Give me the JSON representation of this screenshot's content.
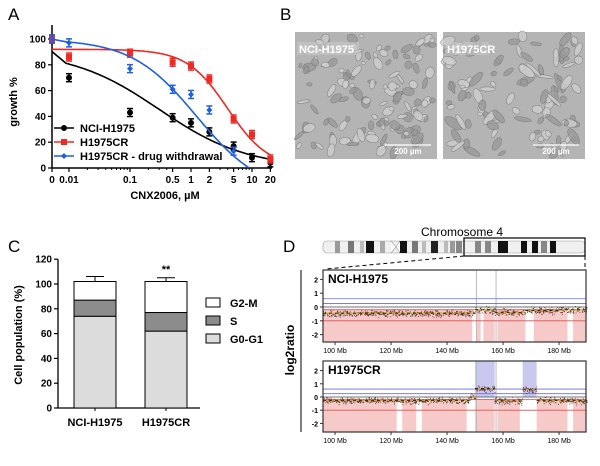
{
  "panels": {
    "a": {
      "label": "A"
    },
    "b": {
      "label": "B",
      "images": [
        {
          "caption": "NCI-H1975",
          "scale_bar": "200 µm"
        },
        {
          "caption": "H1975CR",
          "scale_bar": "200 µm"
        }
      ]
    },
    "c": {
      "label": "C"
    },
    "d": {
      "label": "D",
      "title": "Chromosome 4"
    }
  },
  "chart_data": [
    {
      "panel": "A",
      "type": "line",
      "xlabel": "CNX2006, µM",
      "ylabel": "growth %",
      "x_scale": "log (with 0 at axis break)",
      "x_ticks": [
        "0",
        "0.01",
        "0.1",
        "0.5",
        "1",
        "2",
        "5",
        "10",
        "20"
      ],
      "y_ticks": [
        "0",
        "20",
        "40",
        "60",
        "80",
        "100"
      ],
      "ylim": [
        0,
        110
      ],
      "legend_position": "bottom-left",
      "x": [
        0,
        0.01,
        0.1,
        0.5,
        1,
        2,
        5,
        10,
        20
      ],
      "series": [
        {
          "name": "NCI-H1975",
          "color": "#000000",
          "marker": "circle",
          "values": [
            100,
            70,
            43,
            39,
            35,
            28,
            17,
            8,
            4
          ]
        },
        {
          "name": "H1975CR",
          "color": "#ee2a24",
          "marker": "square",
          "values": [
            100,
            86,
            89,
            82,
            79,
            69,
            38,
            26,
            7
          ]
        },
        {
          "name": "H1975CR - drug withdrawal",
          "color": "#1f5fe0",
          "marker": "diamond",
          "values": [
            100,
            97,
            77,
            61,
            57,
            45,
            13,
            null,
            null
          ]
        }
      ]
    },
    {
      "panel": "C",
      "type": "bar",
      "stacked": true,
      "ylabel": "Cell population (%)",
      "ylim": [
        0,
        120
      ],
      "y_ticks": [
        "0",
        "20",
        "40",
        "60",
        "80",
        "100",
        "120"
      ],
      "categories": [
        "NCI-H1975",
        "H1975CR"
      ],
      "annotations": [
        "",
        "**"
      ],
      "legend_position": "right",
      "series": [
        {
          "name": "G0-G1",
          "color": "#dcdcdc",
          "values": [
            74,
            62
          ],
          "error": [
            4,
            4
          ]
        },
        {
          "name": "S",
          "color": "#8c8c8c",
          "values": [
            13,
            15
          ],
          "error": [
            1,
            0
          ]
        },
        {
          "name": "G2-M",
          "color": "#ffffff",
          "values": [
            15,
            25
          ],
          "error": [
            4,
            3
          ]
        }
      ]
    },
    {
      "panel": "D",
      "type": "scatter",
      "ylabel": "log2ratio",
      "x_ticks": [
        "100 Mb",
        "120 Mb",
        "140 Mb",
        "160 Mb",
        "180 Mb"
      ],
      "y_ticks": [
        "2",
        "1",
        "0",
        "-1",
        "-2"
      ],
      "subplots": [
        {
          "name": "NCI-H1975",
          "gain_regions_mb": []
        },
        {
          "name": "H1975CR",
          "gain_regions_mb": [
            [
              150,
              157
            ],
            [
              167,
              172
            ]
          ]
        }
      ]
    }
  ]
}
